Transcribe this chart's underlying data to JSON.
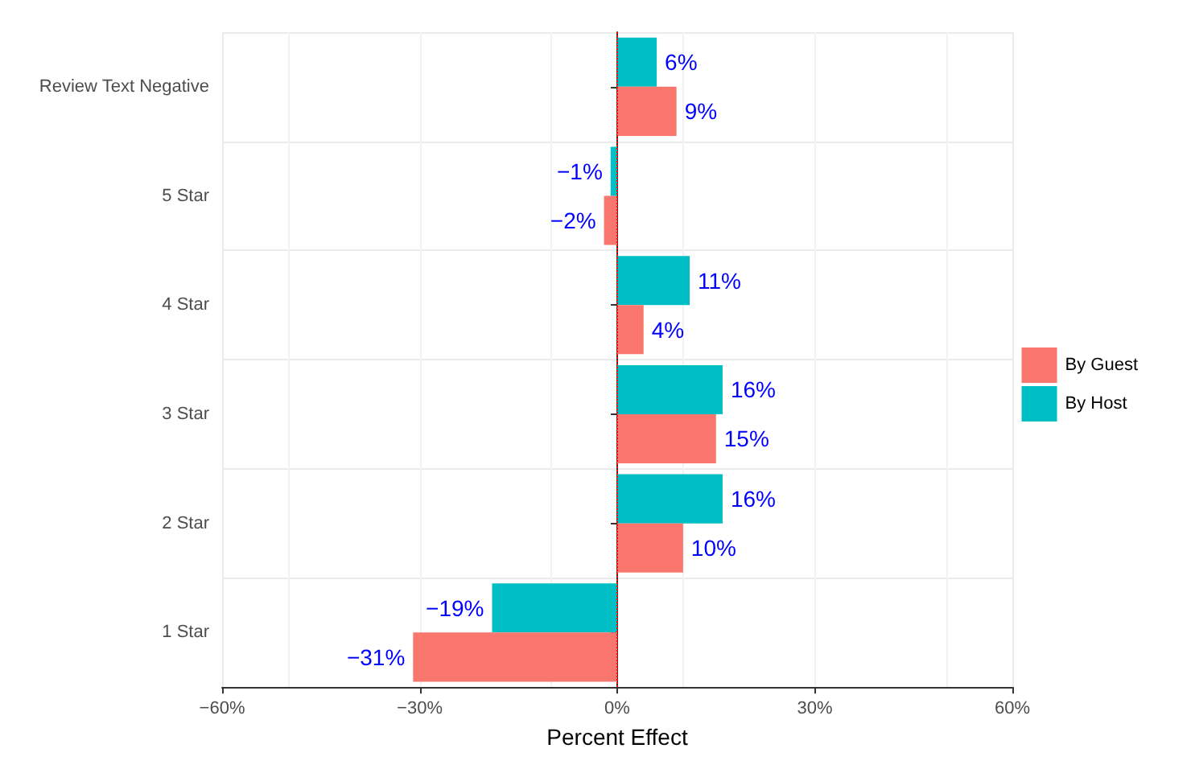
{
  "chart_data": {
    "type": "bar",
    "orientation": "horizontal",
    "xlabel": "Percent Effect",
    "categories": [
      "Review Text Negative",
      "5 Star",
      "4 Star",
      "3 Star",
      "2 Star",
      "1 Star"
    ],
    "series": [
      {
        "name": "By Guest",
        "color": "#f8766d",
        "values": [
          9,
          -2,
          4,
          15,
          10,
          -31
        ],
        "value_labels": [
          "9%",
          "−2%",
          "4%",
          "15%",
          "10%",
          "−31%"
        ]
      },
      {
        "name": "By Host",
        "color": "#00bfc4",
        "values": [
          6,
          -1,
          11,
          16,
          16,
          -19
        ],
        "value_labels": [
          "6%",
          "−1%",
          "11%",
          "16%",
          "16%",
          "−19%"
        ]
      }
    ],
    "xlim": [
      -60,
      60
    ],
    "xticks": [
      {
        "value": -60,
        "label": "−60%"
      },
      {
        "value": -30,
        "label": "−30%"
      },
      {
        "value": 0,
        "label": "0%"
      },
      {
        "value": 30,
        "label": "30%"
      },
      {
        "value": 60,
        "label": "60%"
      }
    ],
    "ref_lines": [
      {
        "axis": "x",
        "value": 0,
        "color": "#ff0000",
        "line_style": "dotted"
      }
    ],
    "grid": true,
    "legend": "right"
  }
}
